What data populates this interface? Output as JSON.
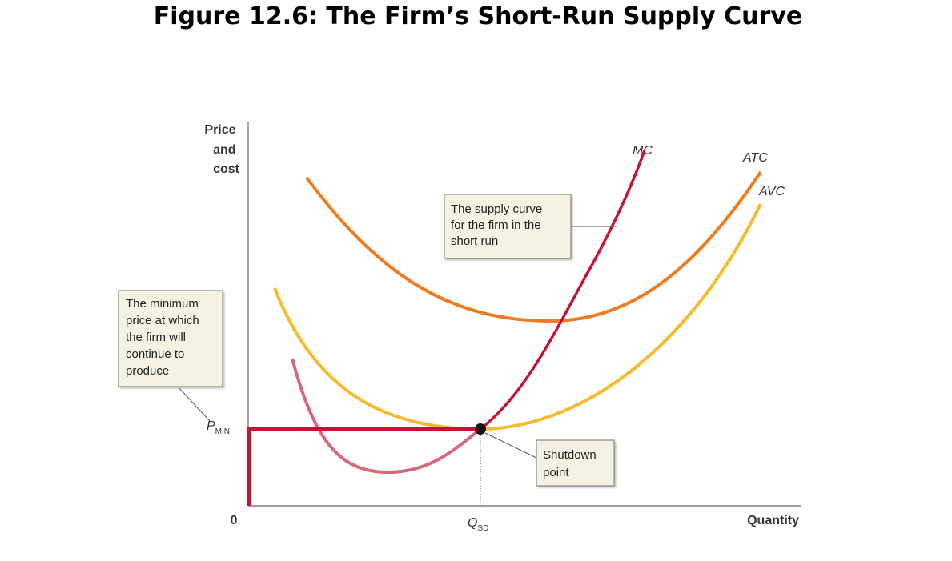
{
  "title": "Figure 12.6: The Firm’s Short-Run Supply Curve",
  "axes": {
    "y_label": [
      "Price",
      "and",
      "cost"
    ],
    "x_label": "Quantity",
    "origin": "0"
  },
  "curves": {
    "mc": "MC",
    "atc": "ATC",
    "avc": "AVC"
  },
  "points": {
    "p_min": {
      "main": "P",
      "sub": "MIN"
    },
    "q_sd": {
      "main": "Q",
      "sub": "SD"
    }
  },
  "callouts": {
    "supply_curve": [
      "The supply curve",
      "for the firm in the",
      "short run"
    ],
    "minimum_price": [
      "The minimum",
      "price at which",
      "the firm will",
      "continue to",
      "produce"
    ],
    "shutdown": [
      "Shutdown",
      "point"
    ]
  }
}
